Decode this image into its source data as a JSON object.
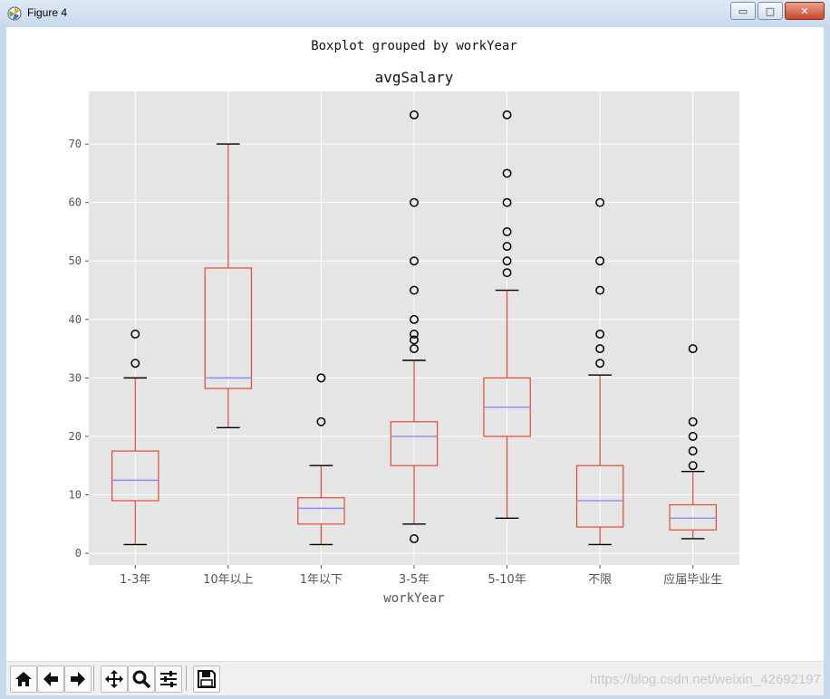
{
  "window": {
    "title": "Figure 4",
    "minimize_glyph": "▭",
    "maximize_glyph": "□",
    "close_glyph": "✕"
  },
  "toolbar": {
    "buttons": [
      {
        "name": "home-icon",
        "glyph": "⌂"
      },
      {
        "name": "back-icon",
        "glyph": "←"
      },
      {
        "name": "forward-icon",
        "glyph": "→"
      },
      {
        "name": "pan-icon",
        "glyph": "✥"
      },
      {
        "name": "zoom-icon",
        "glyph": "🔍"
      },
      {
        "name": "configure-subplots-icon",
        "glyph": "☰"
      },
      {
        "name": "save-icon",
        "glyph": "💾"
      }
    ]
  },
  "watermark": "https://blog.csdn.net/weixin_42692197",
  "chart_data": {
    "type": "boxplot",
    "suptitle": "Boxplot grouped by workYear",
    "title": "avgSalary",
    "xlabel": "workYear",
    "ylabel": "",
    "ylim": [
      -2,
      79
    ],
    "yticks": [
      0,
      10,
      20,
      30,
      40,
      50,
      60,
      70
    ],
    "grid": true,
    "colors": {
      "background": "#e5e5e5",
      "grid": "#ffffff",
      "box": "#e24a33",
      "median": "#8c8cf0",
      "whisker_cap": "#000000",
      "flier": "#000000",
      "text": "#555555"
    },
    "groups": [
      {
        "category": "1-3年",
        "whisker_low": 1.5,
        "q1": 9,
        "median": 12.5,
        "q3": 17.5,
        "whisker_high": 30,
        "fliers": [
          32.5,
          37.5
        ]
      },
      {
        "category": "10年以上",
        "whisker_low": 21.5,
        "q1": 28.2,
        "median": 30,
        "q3": 48.8,
        "whisker_high": 70,
        "fliers": []
      },
      {
        "category": "1年以下",
        "whisker_low": 1.5,
        "q1": 5,
        "median": 7.7,
        "q3": 9.5,
        "whisker_high": 15,
        "fliers": [
          22.5,
          30
        ]
      },
      {
        "category": "3-5年",
        "whisker_low": 5,
        "q1": 15,
        "median": 20,
        "q3": 22.5,
        "whisker_high": 33,
        "fliers": [
          2.5,
          35,
          36.5,
          37.5,
          40,
          45,
          50,
          60,
          75
        ]
      },
      {
        "category": "5-10年",
        "whisker_low": 6,
        "q1": 20,
        "median": 25,
        "q3": 30,
        "whisker_high": 45,
        "fliers": [
          48,
          50,
          52.5,
          55,
          60,
          65,
          75
        ]
      },
      {
        "category": "不限",
        "whisker_low": 1.5,
        "q1": 4.5,
        "median": 9,
        "q3": 15,
        "whisker_high": 30.5,
        "fliers": [
          32.5,
          35,
          37.5,
          45,
          50,
          60
        ]
      },
      {
        "category": "应届毕业生",
        "whisker_low": 2.5,
        "q1": 4,
        "median": 6,
        "q3": 8.3,
        "whisker_high": 14,
        "fliers": [
          15,
          17.5,
          20,
          22.5,
          35
        ]
      }
    ]
  }
}
